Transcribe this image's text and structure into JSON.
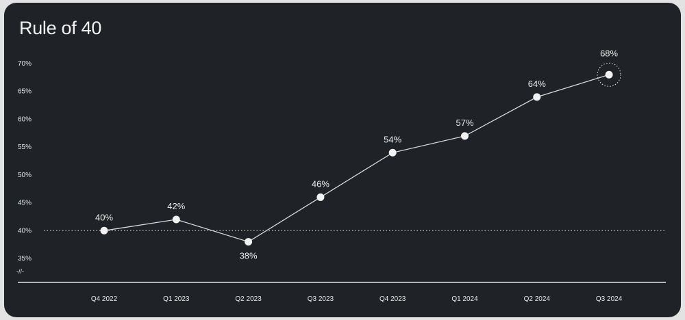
{
  "chart_data": {
    "type": "line",
    "title": "Rule of 40",
    "categories": [
      "Q4 2022",
      "Q1 2023",
      "Q2 2023",
      "Q3 2023",
      "Q4 2023",
      "Q1 2024",
      "Q2 2024",
      "Q3 2024"
    ],
    "values": [
      40,
      42,
      38,
      46,
      54,
      57,
      64,
      68
    ],
    "data_labels": [
      "40%",
      "42%",
      "38%",
      "46%",
      "54%",
      "57%",
      "64%",
      "68%"
    ],
    "y_ticks": [
      35,
      40,
      45,
      50,
      55,
      60,
      65,
      70
    ],
    "y_tick_labels": [
      "35%",
      "40%",
      "45%",
      "50%",
      "55%",
      "60%",
      "65%",
      "70%"
    ],
    "ylim": [
      35,
      70
    ],
    "axis_break_label": "-//-",
    "reference_line": 40,
    "highlighted_point": "Q3 2024",
    "grid": false,
    "colors": {
      "background": "#1f2226",
      "line": "#d9d9d9",
      "marker": "#f2f2f2",
      "text": "#e8e8e8"
    }
  }
}
